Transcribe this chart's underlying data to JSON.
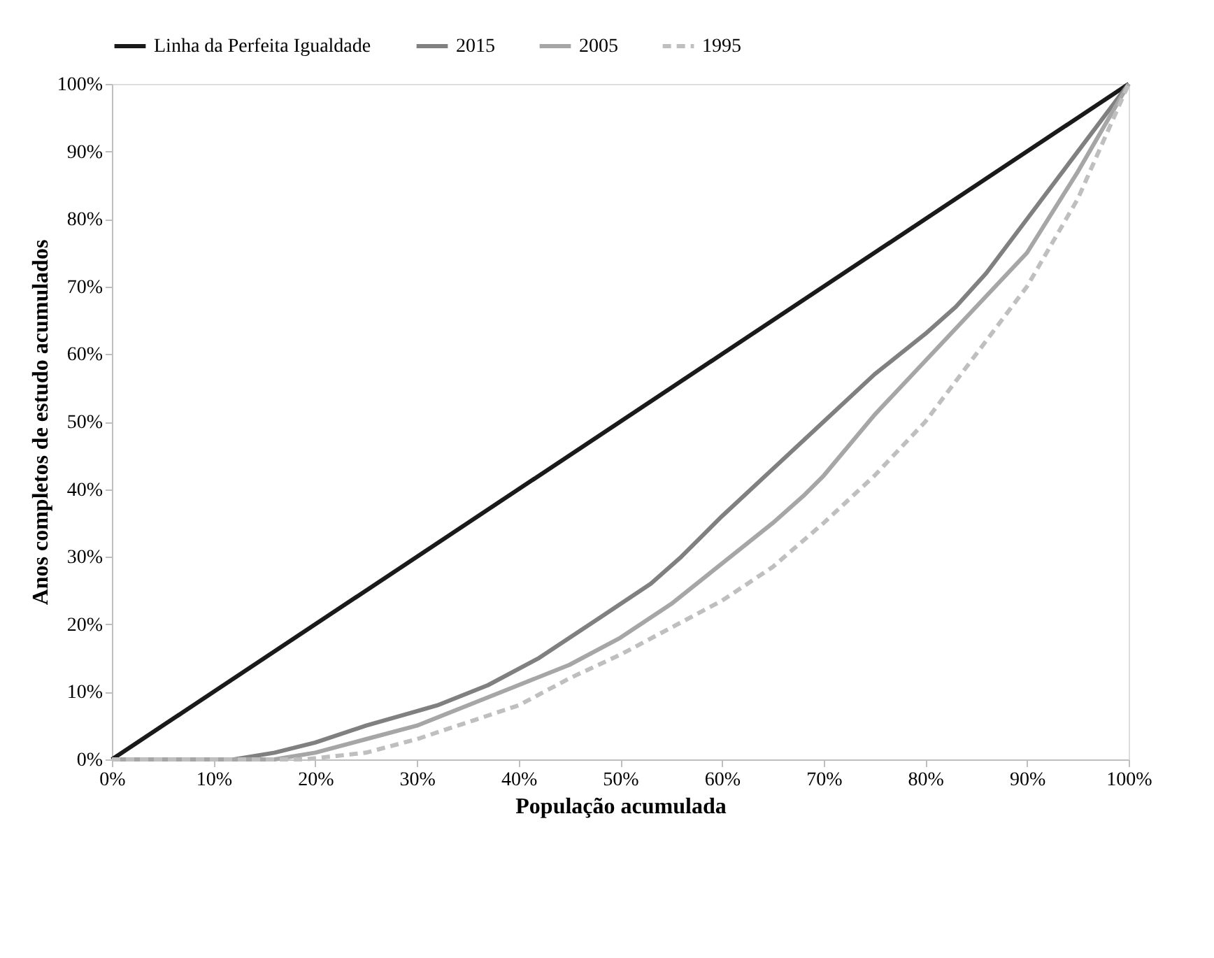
{
  "chart_data": {
    "type": "line",
    "xlabel": "População acumulada",
    "ylabel": "Anos completos de estudo acumulados",
    "xlim": [
      0,
      100
    ],
    "ylim": [
      0,
      100
    ],
    "xticks": [
      {
        "value": 0,
        "label": "0%"
      },
      {
        "value": 10,
        "label": "10%"
      },
      {
        "value": 20,
        "label": "20%"
      },
      {
        "value": 30,
        "label": "30%"
      },
      {
        "value": 40,
        "label": "40%"
      },
      {
        "value": 50,
        "label": "50%"
      },
      {
        "value": 60,
        "label": "60%"
      },
      {
        "value": 70,
        "label": "70%"
      },
      {
        "value": 80,
        "label": "80%"
      },
      {
        "value": 90,
        "label": "90%"
      },
      {
        "value": 100,
        "label": "100%"
      }
    ],
    "yticks": [
      {
        "value": 0,
        "label": "0%"
      },
      {
        "value": 10,
        "label": "10%"
      },
      {
        "value": 20,
        "label": "20%"
      },
      {
        "value": 30,
        "label": "30%"
      },
      {
        "value": 40,
        "label": "40%"
      },
      {
        "value": 50,
        "label": "50%"
      },
      {
        "value": 60,
        "label": "60%"
      },
      {
        "value": 70,
        "label": "70%"
      },
      {
        "value": 80,
        "label": "80%"
      },
      {
        "value": 90,
        "label": "90%"
      },
      {
        "value": 100,
        "label": "100%"
      }
    ],
    "grid": false,
    "legend": "top",
    "marker": "none",
    "series": [
      {
        "name": "Linha da Perfeita Igualdade",
        "color": "#1a1a1a",
        "line_style": "solid",
        "x": [
          0,
          100
        ],
        "values": [
          0,
          100
        ]
      },
      {
        "name": "2015",
        "color": "#808080",
        "line_style": "solid",
        "x": [
          0,
          12,
          16,
          20,
          25,
          32,
          37,
          42,
          48,
          53,
          56,
          60,
          65,
          70,
          75,
          80,
          83,
          86,
          90,
          95,
          100
        ],
        "values": [
          0,
          0,
          1,
          2.5,
          5,
          8,
          11,
          15,
          21,
          26,
          30,
          36,
          43,
          50,
          57,
          63,
          67,
          72,
          80,
          90,
          100
        ]
      },
      {
        "name": "2005",
        "color": "#a6a6a6",
        "line_style": "solid",
        "x": [
          0,
          16,
          20,
          25,
          30,
          35,
          40,
          45,
          50,
          55,
          60,
          65,
          68,
          70,
          75,
          80,
          85,
          90,
          95,
          100
        ],
        "values": [
          0,
          0,
          1,
          3,
          5,
          8,
          11,
          14,
          18,
          23,
          29,
          35,
          39,
          42,
          51,
          59,
          67,
          75,
          87,
          100
        ]
      },
      {
        "name": "1995",
        "color": "#bfbfbf",
        "line_style": "dashed",
        "x": [
          0,
          19,
          25,
          30,
          35,
          40,
          45,
          50,
          55,
          60,
          65,
          70,
          75,
          80,
          85,
          90,
          95,
          100
        ],
        "values": [
          0,
          0,
          1,
          3,
          5.5,
          8,
          12,
          15.5,
          19.5,
          23.5,
          28.5,
          35,
          42,
          50,
          60,
          70,
          83,
          100
        ]
      }
    ]
  }
}
